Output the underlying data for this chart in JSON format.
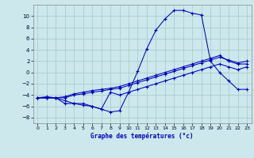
{
  "title": "Graphe des températures (°c)",
  "bg_color": "#cce8ec",
  "grid_color": "#aacccc",
  "line_color": "#0000bb",
  "xlim": [
    -0.5,
    23.5
  ],
  "ylim": [
    -9,
    12
  ],
  "xticks": [
    0,
    1,
    2,
    3,
    4,
    5,
    6,
    7,
    8,
    9,
    10,
    11,
    12,
    13,
    14,
    15,
    16,
    17,
    18,
    19,
    20,
    21,
    22,
    23
  ],
  "yticks": [
    -8,
    -6,
    -4,
    -2,
    0,
    2,
    4,
    6,
    8,
    10
  ],
  "series1_x": [
    0,
    1,
    2,
    3,
    4,
    5,
    6,
    7,
    8,
    9,
    10,
    11,
    12,
    13,
    14,
    15,
    16,
    17,
    18,
    19,
    20,
    21,
    22,
    23
  ],
  "series1_y": [
    -4.5,
    -4.5,
    -4.5,
    -5,
    -5.5,
    -5.5,
    -6,
    -6.5,
    -7,
    -6.8,
    -3.5,
    0.2,
    4.2,
    7.5,
    9.5,
    11,
    11,
    10.5,
    10.2,
    2,
    0,
    -1.5,
    -3,
    -3
  ],
  "series2_x": [
    0,
    1,
    2,
    3,
    4,
    5,
    6,
    7,
    8,
    9,
    10,
    11,
    12,
    13,
    14,
    15,
    16,
    17,
    18,
    19,
    20,
    21,
    22,
    23
  ],
  "series2_y": [
    -4.5,
    -4.5,
    -4.5,
    -4.3,
    -3.8,
    -3.5,
    -3.2,
    -3.0,
    -2.8,
    -2.5,
    -2.0,
    -1.5,
    -1.0,
    -0.5,
    0,
    0.5,
    1.0,
    1.5,
    2.0,
    2.5,
    3.0,
    2.0,
    1.5,
    1.5
  ],
  "series3_x": [
    0,
    1,
    2,
    3,
    4,
    5,
    6,
    7,
    8,
    9,
    10,
    11,
    12,
    13,
    14,
    15,
    16,
    17,
    18,
    19,
    20,
    21,
    22,
    23
  ],
  "series3_y": [
    -4.5,
    -4.5,
    -4.5,
    -4.5,
    -4.0,
    -3.8,
    -3.5,
    -3.3,
    -3.0,
    -2.8,
    -2.3,
    -1.8,
    -1.3,
    -0.8,
    -0.3,
    0.2,
    0.7,
    1.2,
    1.7,
    2.2,
    2.7,
    2.2,
    1.7,
    2.0
  ],
  "series4_x": [
    0,
    1,
    2,
    3,
    4,
    5,
    6,
    7,
    8,
    9,
    10,
    11,
    12,
    13,
    14,
    15,
    16,
    17,
    18,
    19,
    20,
    21,
    22,
    23
  ],
  "series4_y": [
    -4.5,
    -4.3,
    -4.5,
    -5.5,
    -5.5,
    -5.8,
    -6,
    -6.5,
    -3.5,
    -4.0,
    -3.5,
    -3.0,
    -2.5,
    -2.0,
    -1.5,
    -1.0,
    -0.5,
    0,
    0.5,
    1.0,
    1.5,
    1.0,
    0.5,
    1.0
  ]
}
